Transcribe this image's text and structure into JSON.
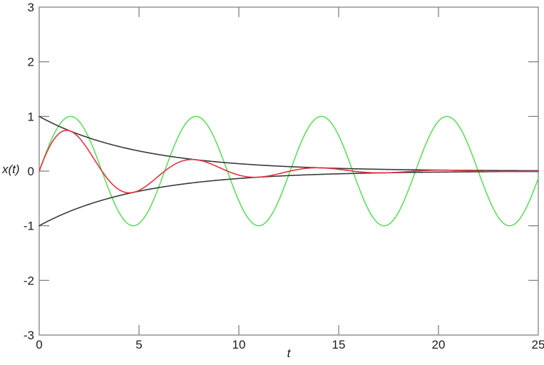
{
  "chart_data": {
    "type": "line",
    "title": "",
    "xlabel": "t",
    "ylabel": "x(t)",
    "xlim": [
      0,
      25
    ],
    "ylim": [
      -3,
      3
    ],
    "x_ticks": [
      0,
      5,
      10,
      15,
      20,
      25
    ],
    "y_ticks": [
      -3,
      -2,
      -1,
      0,
      1,
      2,
      3
    ],
    "grid": false,
    "legend": false,
    "frame_style": "boxed frame with inward tick marks on all four sides",
    "background": "#ffffff",
    "axis_color": "#828282",
    "tick_label_color": "#1c1c1c",
    "sample_step": 0.04,
    "series": [
      {
        "id": "sine",
        "name": "sin(t)",
        "description": "undamped sinusoid, amplitude 1, angular frequency 1 (period 2pi), peaks near t = 1.57, 7.85, 14.14, 20.42",
        "color": "#5fdd5f",
        "formula": {
          "kind": "sinusoid",
          "amplitude": 1,
          "omega": 1,
          "tau": null
        }
      },
      {
        "id": "damped-sine",
        "name": "exp(-t/5)*sin(t)",
        "description": "damped oscillation starting at 0, first peak about 0.74 at t = 1.37, decaying to about 0 by t = 25",
        "color": "#e0343f",
        "formula": {
          "kind": "sinusoid",
          "amplitude": 1,
          "omega": 1,
          "tau": 5
        }
      },
      {
        "id": "upper-envelope",
        "name": "exp(-t/5)",
        "description": "upper exponential envelope, value 1 at t=0, about 0.37 at t=5, about 0.14 at t=10",
        "color": "#3a3a3a",
        "formula": {
          "kind": "exponential",
          "amplitude": 1,
          "omega": null,
          "tau": 5
        }
      },
      {
        "id": "lower-envelope",
        "name": "-exp(-t/5)",
        "description": "lower exponential envelope, value -1 at t=0 rising toward 0",
        "color": "#3a3a3a",
        "formula": {
          "kind": "exponential",
          "amplitude": -1,
          "omega": null,
          "tau": 5
        }
      }
    ]
  }
}
